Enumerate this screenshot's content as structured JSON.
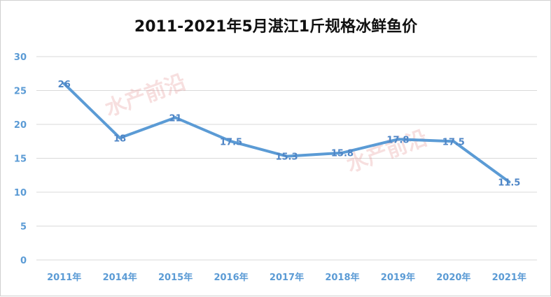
{
  "chart_data": {
    "type": "line",
    "title": "2011-2021年5月湛江1斤规格冰鲜鱼价",
    "categories": [
      "2011年",
      "2014年",
      "2015年",
      "2016年",
      "2017年",
      "2018年",
      "2019年",
      "2020年",
      "2021年"
    ],
    "series": [
      {
        "values": [
          26,
          18,
          21,
          17.5,
          15.3,
          15.8,
          17.8,
          17.5,
          11.5
        ]
      }
    ],
    "data_labels": [
      "26",
      "18",
      "21",
      "17.5",
      "15.3",
      "15.8",
      "17.8",
      "17.5",
      "11.5"
    ],
    "yticks": [
      "0",
      "5",
      "10",
      "15",
      "20",
      "25",
      "30"
    ],
    "ylim": [
      0,
      30
    ],
    "grid": true,
    "legend": "none",
    "watermarks": [
      "水产前沿",
      "水产前沿"
    ],
    "colors": {
      "line": "#5b9bd5",
      "tick": "#5b9bd5",
      "grid": "#d9d9d9",
      "title": "#111111"
    }
  }
}
